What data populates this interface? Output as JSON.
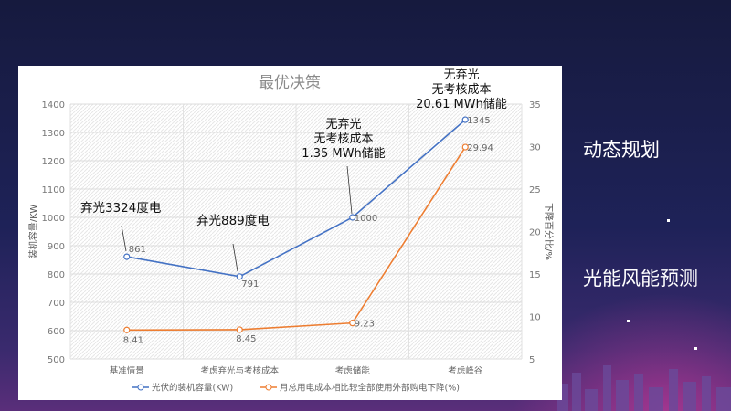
{
  "side_labels": [
    "动态规划",
    "光能风能预测"
  ],
  "chart_data": {
    "type": "line",
    "title": "最优决策",
    "categories": [
      "基准情景",
      "考虑弃光与考核成本",
      "考虑储能",
      "考虑峰谷"
    ],
    "ylabel": "装机容量/KW",
    "y2label": "下降百分比/%",
    "ylim": [
      500,
      1400
    ],
    "yticks": [
      500,
      600,
      700,
      800,
      900,
      1000,
      1100,
      1200,
      1300,
      1400
    ],
    "y2lim": [
      5,
      35
    ],
    "y2ticks": [
      5,
      10,
      15,
      20,
      25,
      30,
      35
    ],
    "grid": true,
    "legend": "bottom",
    "series": [
      {
        "name": "光伏的装机容量(KW)",
        "axis": "left",
        "color": "#4472c4",
        "values": [
          861,
          791,
          1000,
          1345
        ],
        "labels": [
          "861",
          "791",
          "1000",
          "1345"
        ]
      },
      {
        "name": "月总用电成本相比较全部使用外部购电下降(%)",
        "axis": "right",
        "color": "#ed7d31",
        "values": [
          8.41,
          8.45,
          9.23,
          29.94
        ],
        "labels": [
          "8.41",
          "8.45",
          "9.23",
          "29.94"
        ]
      }
    ],
    "annotations": [
      {
        "category": "基准情景",
        "lines": [
          "弃光3324度电"
        ]
      },
      {
        "category": "考虑弃光与考核成本",
        "lines": [
          "弃光889度电"
        ]
      },
      {
        "category": "考虑储能",
        "lines": [
          "无弃光",
          "无考核成本",
          "1.35 MWh储能"
        ]
      },
      {
        "category": "考虑峰谷",
        "lines": [
          "无弃光",
          "无考核成本",
          "20.61 MWh储能"
        ]
      }
    ]
  }
}
